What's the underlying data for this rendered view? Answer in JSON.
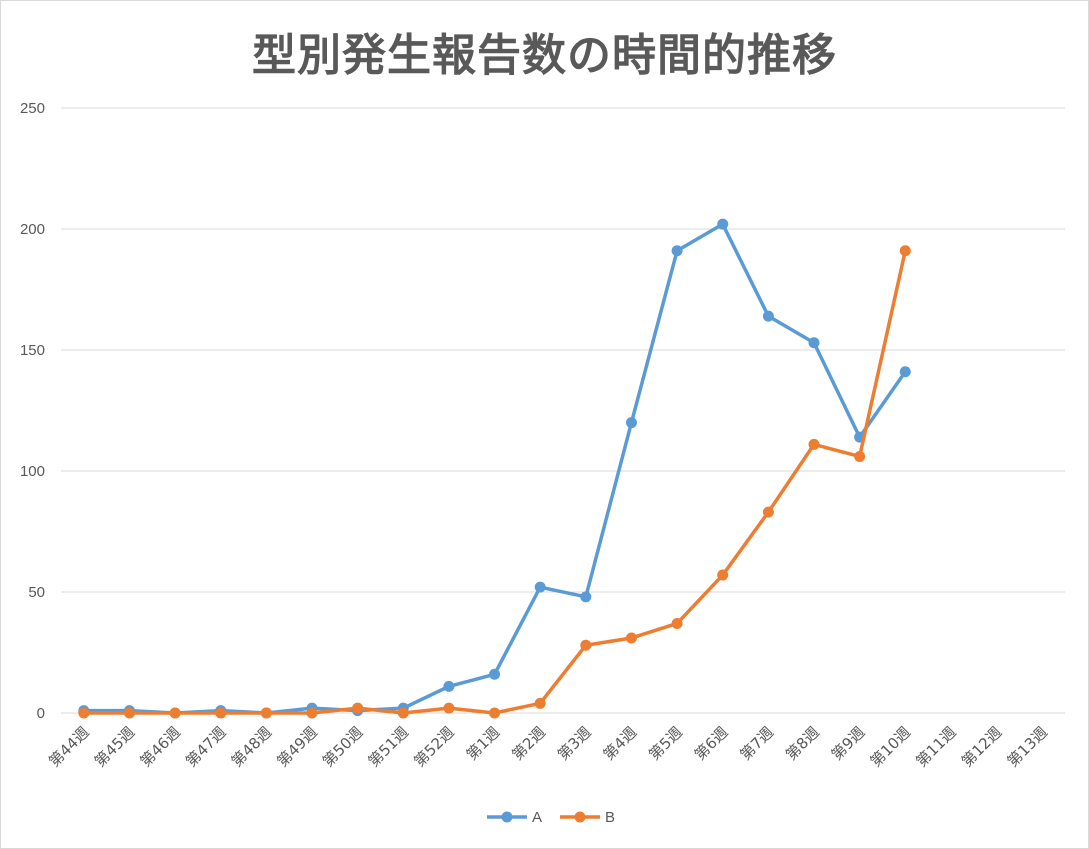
{
  "chart_data": {
    "type": "line",
    "title": "型別発生報告数の時間的推移",
    "xlabel": "",
    "ylabel": "",
    "ylim": [
      0,
      250
    ],
    "yticks": [
      "0",
      "50",
      "100",
      "150",
      "200",
      "250"
    ],
    "grid": true,
    "legend_position": "bottom",
    "categories": [
      "第44週",
      "第45週",
      "第46週",
      "第47週",
      "第48週",
      "第49週",
      "第50週",
      "第51週",
      "第52週",
      "第1週",
      "第2週",
      "第3週",
      "第4週",
      "第5週",
      "第6週",
      "第7週",
      "第8週",
      "第9週",
      "第10週",
      "第11週",
      "第12週",
      "第13週"
    ],
    "series": [
      {
        "name": "A",
        "color": "#5b9bd5",
        "values": [
          1,
          1,
          0,
          1,
          0,
          2,
          1,
          2,
          11,
          16,
          52,
          48,
          120,
          191,
          202,
          164,
          153,
          114,
          141,
          null,
          null,
          null
        ]
      },
      {
        "name": "B",
        "color": "#ed7d31",
        "values": [
          0,
          0,
          0,
          0,
          0,
          0,
          2,
          0,
          2,
          0,
          4,
          28,
          31,
          37,
          57,
          83,
          111,
          106,
          191,
          null,
          null,
          null
        ]
      }
    ]
  }
}
